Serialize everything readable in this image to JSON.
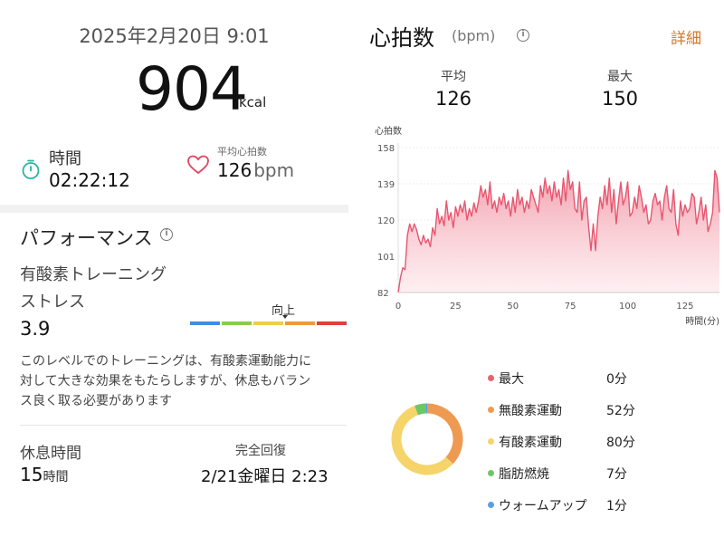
{
  "summary": {
    "date": "2025年2月20日 9:01",
    "calories": "904",
    "calories_unit": "kcal",
    "time_label": "時間",
    "time_value": "02:22:12",
    "avg_hr_label": "平均心拍数",
    "avg_hr_value": "126",
    "avg_hr_unit": "bpm"
  },
  "performance": {
    "title": "パフォーマンス",
    "stress_label_line1": "有酸素トレーニング",
    "stress_label_line2": "ストレス",
    "stress_value": "3.9",
    "stress_level": 3.9,
    "scale_marker_label": "向上",
    "scale_colors": [
      "#3d8ee0",
      "#8ccc45",
      "#e9d149",
      "#ef9a3a",
      "#e23e3e"
    ],
    "description": [
      "このレベルでのトレーニングは、有酸素運動能力に",
      "対して大きな効果をもたらしますが、休息もバラン",
      "ス良く取る必要があります"
    ],
    "rest_label": "休息時間",
    "rest_value": "15",
    "rest_unit": "時間",
    "recover_label": "完全回復",
    "recover_value": "2/21金曜日 2:23"
  },
  "heart_rate": {
    "title": "心拍数",
    "unit": "(bpm)",
    "detail_label": "詳細",
    "avg_label": "平均",
    "avg_value": "126",
    "max_label": "最大",
    "max_value": "150"
  },
  "chart_data": {
    "type": "area",
    "ylabel": "心拍数",
    "xlabel": "時間(分)",
    "yticks": [
      158,
      139,
      120,
      101,
      82
    ],
    "xticks": [
      0,
      25,
      50,
      75,
      100,
      125
    ],
    "ylim": [
      82,
      158
    ],
    "xlim": [
      0,
      140
    ],
    "color": "#e8566f",
    "x": [
      0,
      1,
      2,
      3,
      4,
      5,
      6,
      7,
      8,
      9,
      10,
      11,
      12,
      13,
      14,
      15,
      16,
      17,
      18,
      19,
      20,
      21,
      22,
      23,
      24,
      25,
      26,
      27,
      28,
      29,
      30,
      31,
      32,
      33,
      34,
      35,
      36,
      37,
      38,
      39,
      40,
      41,
      42,
      43,
      44,
      45,
      46,
      47,
      48,
      49,
      50,
      51,
      52,
      53,
      54,
      55,
      56,
      57,
      58,
      59,
      60,
      61,
      62,
      63,
      64,
      65,
      66,
      67,
      68,
      69,
      70,
      71,
      72,
      73,
      74,
      75,
      76,
      77,
      78,
      79,
      80,
      81,
      82,
      83,
      84,
      85,
      86,
      87,
      88,
      89,
      90,
      91,
      92,
      93,
      94,
      95,
      96,
      97,
      98,
      99,
      100,
      101,
      102,
      103,
      104,
      105,
      106,
      107,
      108,
      109,
      110,
      111,
      112,
      113,
      114,
      115,
      116,
      117,
      118,
      119,
      120,
      121,
      122,
      123,
      124,
      125,
      126,
      127,
      128,
      129,
      130,
      131,
      132,
      133,
      134,
      135,
      136,
      137,
      138,
      139,
      140
    ],
    "y": [
      82,
      90,
      95,
      94,
      112,
      118,
      114,
      118,
      115,
      110,
      107,
      112,
      108,
      110,
      106,
      116,
      112,
      126,
      118,
      122,
      117,
      130,
      120,
      124,
      116,
      127,
      122,
      128,
      124,
      130,
      120,
      126,
      122,
      129,
      124,
      130,
      138,
      132,
      136,
      128,
      140,
      126,
      130,
      124,
      132,
      128,
      134,
      126,
      130,
      122,
      132,
      124,
      136,
      128,
      132,
      124,
      130,
      126,
      136,
      132,
      128,
      124,
      138,
      132,
      142,
      134,
      138,
      130,
      140,
      132,
      136,
      128,
      142,
      130,
      146,
      136,
      140,
      126,
      124,
      140,
      120,
      130,
      132,
      116,
      104,
      118,
      104,
      122,
      132,
      126,
      138,
      128,
      142,
      124,
      136,
      118,
      130,
      140,
      128,
      132,
      140,
      122,
      124,
      132,
      126,
      138,
      132,
      124,
      128,
      118,
      120,
      130,
      134,
      128,
      130,
      120,
      132,
      138,
      126,
      124,
      136,
      118,
      112,
      130,
      122,
      128,
      124,
      126,
      134,
      132,
      118,
      124,
      132,
      120,
      128,
      114,
      118,
      124,
      146,
      142,
      124
    ]
  },
  "zones": [
    {
      "name": "最大",
      "time": "0分",
      "color": "#e9626a",
      "minutes": 0
    },
    {
      "name": "無酸素運動",
      "time": "52分",
      "color": "#ef9a52",
      "minutes": 52
    },
    {
      "name": "有酸素運動",
      "time": "80分",
      "color": "#f5d56a",
      "minutes": 80
    },
    {
      "name": "脂肪燃焼",
      "time": "7分",
      "color": "#6dc765",
      "minutes": 7
    },
    {
      "name": "ウォームアップ",
      "time": "1分",
      "color": "#5b9ee6",
      "minutes": 1
    }
  ],
  "icons": {
    "timer": "stopwatch-icon",
    "heart": "heart-outline-icon",
    "info": "info-icon"
  },
  "colors": {
    "accent": "#d4792b",
    "timer_icon": "#2bb3a0",
    "heart_icon": "#e0475f"
  }
}
